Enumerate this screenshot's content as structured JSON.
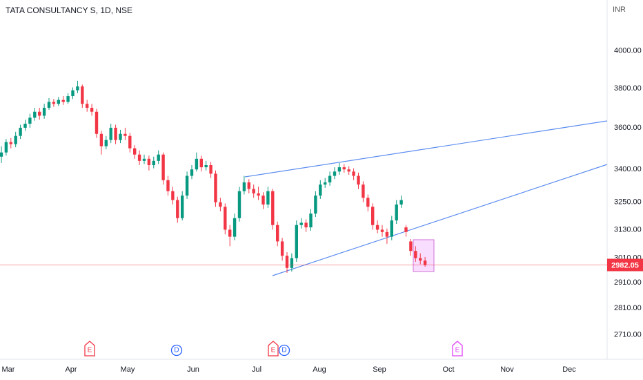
{
  "chart_data": {
    "type": "candlestick",
    "title": "TATA CONSULTANCY S, 1D, NSE",
    "currency": "INR",
    "up_color": "#089981",
    "down_color": "#f23645",
    "log": true,
    "grid": false,
    "ylim": [
      2620,
      4290
    ],
    "yticks": [
      {
        "value": 2710,
        "label": "2710.00"
      },
      {
        "value": 2810,
        "label": "2810.00"
      },
      {
        "value": 2910,
        "label": "2910.00"
      },
      {
        "value": 3010,
        "label": "3010.00"
      },
      {
        "value": 3130,
        "label": "3130.00"
      },
      {
        "value": 3250,
        "label": "3250.00"
      },
      {
        "value": 3400,
        "label": "3400.00"
      },
      {
        "value": 3600,
        "label": "3600.00"
      },
      {
        "value": 3800,
        "label": "3800.00"
      },
      {
        "value": 4000,
        "label": "4000.00"
      }
    ],
    "months": [
      "Mar",
      "Apr",
      "May",
      "Jun",
      "Jul",
      "Aug",
      "Sep",
      "Oct",
      "Nov",
      "Dec"
    ],
    "last_price": 2982.05,
    "events": [
      {
        "label": "E",
        "color": "#f23645"
      },
      {
        "label": "D",
        "color": "#2962ff"
      },
      {
        "label": "E",
        "color": "#f23645"
      },
      {
        "label": "D",
        "color": "#2962ff"
      },
      {
        "label": "E",
        "color": "#e040fb"
      }
    ],
    "candles": [
      [
        3460,
        3510,
        3430,
        3480
      ],
      [
        3480,
        3545,
        3465,
        3530
      ],
      [
        3530,
        3550,
        3500,
        3520
      ],
      [
        3520,
        3580,
        3505,
        3560
      ],
      [
        3560,
        3615,
        3545,
        3600
      ],
      [
        3600,
        3640,
        3585,
        3620
      ],
      [
        3620,
        3670,
        3600,
        3650
      ],
      [
        3650,
        3700,
        3635,
        3680
      ],
      [
        3680,
        3700,
        3640,
        3660
      ],
      [
        3660,
        3720,
        3645,
        3700
      ],
      [
        3700,
        3750,
        3690,
        3730
      ],
      [
        3730,
        3745,
        3705,
        3720
      ],
      [
        3720,
        3755,
        3710,
        3740
      ],
      [
        3740,
        3760,
        3715,
        3730
      ],
      [
        3730,
        3775,
        3720,
        3760
      ],
      [
        3760,
        3805,
        3745,
        3790
      ],
      [
        3790,
        3840,
        3775,
        3810
      ],
      [
        3810,
        3820,
        3700,
        3720
      ],
      [
        3720,
        3740,
        3680,
        3700
      ],
      [
        3700,
        3720,
        3660,
        3680
      ],
      [
        3680,
        3695,
        3550,
        3570
      ],
      [
        3570,
        3585,
        3470,
        3510
      ],
      [
        3510,
        3560,
        3495,
        3540
      ],
      [
        3540,
        3620,
        3525,
        3600
      ],
      [
        3600,
        3615,
        3520,
        3540
      ],
      [
        3540,
        3590,
        3525,
        3570
      ],
      [
        3570,
        3600,
        3540,
        3560
      ],
      [
        3560,
        3575,
        3480,
        3500
      ],
      [
        3500,
        3515,
        3450,
        3470
      ],
      [
        3470,
        3490,
        3420,
        3440
      ],
      [
        3440,
        3470,
        3425,
        3450
      ],
      [
        3450,
        3465,
        3395,
        3420
      ],
      [
        3420,
        3460,
        3405,
        3440
      ],
      [
        3440,
        3490,
        3425,
        3470
      ],
      [
        3470,
        3480,
        3330,
        3350
      ],
      [
        3350,
        3370,
        3280,
        3300
      ],
      [
        3300,
        3320,
        3240,
        3260
      ],
      [
        3260,
        3275,
        3160,
        3180
      ],
      [
        3180,
        3300,
        3170,
        3280
      ],
      [
        3280,
        3390,
        3265,
        3370
      ],
      [
        3370,
        3420,
        3355,
        3400
      ],
      [
        3400,
        3480,
        3390,
        3450
      ],
      [
        3450,
        3465,
        3390,
        3410
      ],
      [
        3410,
        3440,
        3395,
        3420
      ],
      [
        3420,
        3435,
        3360,
        3380
      ],
      [
        3380,
        3395,
        3230,
        3250
      ],
      [
        3250,
        3270,
        3210,
        3230
      ],
      [
        3230,
        3245,
        3110,
        3130
      ],
      [
        3130,
        3150,
        3060,
        3100
      ],
      [
        3100,
        3200,
        3085,
        3180
      ],
      [
        3180,
        3320,
        3165,
        3300
      ],
      [
        3300,
        3370,
        3285,
        3340
      ],
      [
        3340,
        3355,
        3290,
        3310
      ],
      [
        3310,
        3330,
        3270,
        3290
      ],
      [
        3290,
        3320,
        3260,
        3280
      ],
      [
        3280,
        3295,
        3220,
        3240
      ],
      [
        3240,
        3320,
        3225,
        3300
      ],
      [
        3300,
        3310,
        3130,
        3150
      ],
      [
        3150,
        3165,
        3060,
        3080
      ],
      [
        3080,
        3095,
        3000,
        3020
      ],
      [
        3020,
        3035,
        2950,
        2970
      ],
      [
        2970,
        3030,
        2955,
        3010
      ],
      [
        3010,
        3170,
        2995,
        3150
      ],
      [
        3150,
        3180,
        3135,
        3160
      ],
      [
        3160,
        3175,
        3120,
        3140
      ],
      [
        3140,
        3220,
        3125,
        3200
      ],
      [
        3200,
        3300,
        3185,
        3280
      ],
      [
        3280,
        3350,
        3265,
        3330
      ],
      [
        3330,
        3360,
        3315,
        3340
      ],
      [
        3340,
        3390,
        3325,
        3370
      ],
      [
        3370,
        3410,
        3355,
        3390
      ],
      [
        3390,
        3430,
        3375,
        3410
      ],
      [
        3410,
        3425,
        3385,
        3400
      ],
      [
        3400,
        3415,
        3375,
        3390
      ],
      [
        3390,
        3405,
        3350,
        3370
      ],
      [
        3370,
        3385,
        3310,
        3330
      ],
      [
        3330,
        3345,
        3250,
        3270
      ],
      [
        3270,
        3285,
        3210,
        3230
      ],
      [
        3230,
        3245,
        3130,
        3150
      ],
      [
        3150,
        3170,
        3115,
        3130
      ],
      [
        3130,
        3150,
        3100,
        3120
      ],
      [
        3120,
        3135,
        3070,
        3100
      ],
      [
        3100,
        3190,
        3085,
        3170
      ],
      [
        3170,
        3260,
        3155,
        3240
      ],
      [
        3240,
        3280,
        3225,
        3260
      ],
      [
        3140,
        3150,
        3100,
        3120
      ],
      [
        3080,
        3090,
        3020,
        3040
      ],
      [
        3040,
        3060,
        2995,
        3010
      ],
      [
        3010,
        3030,
        2985,
        3000
      ],
      [
        3000,
        3015,
        2975,
        2982.05
      ]
    ]
  }
}
